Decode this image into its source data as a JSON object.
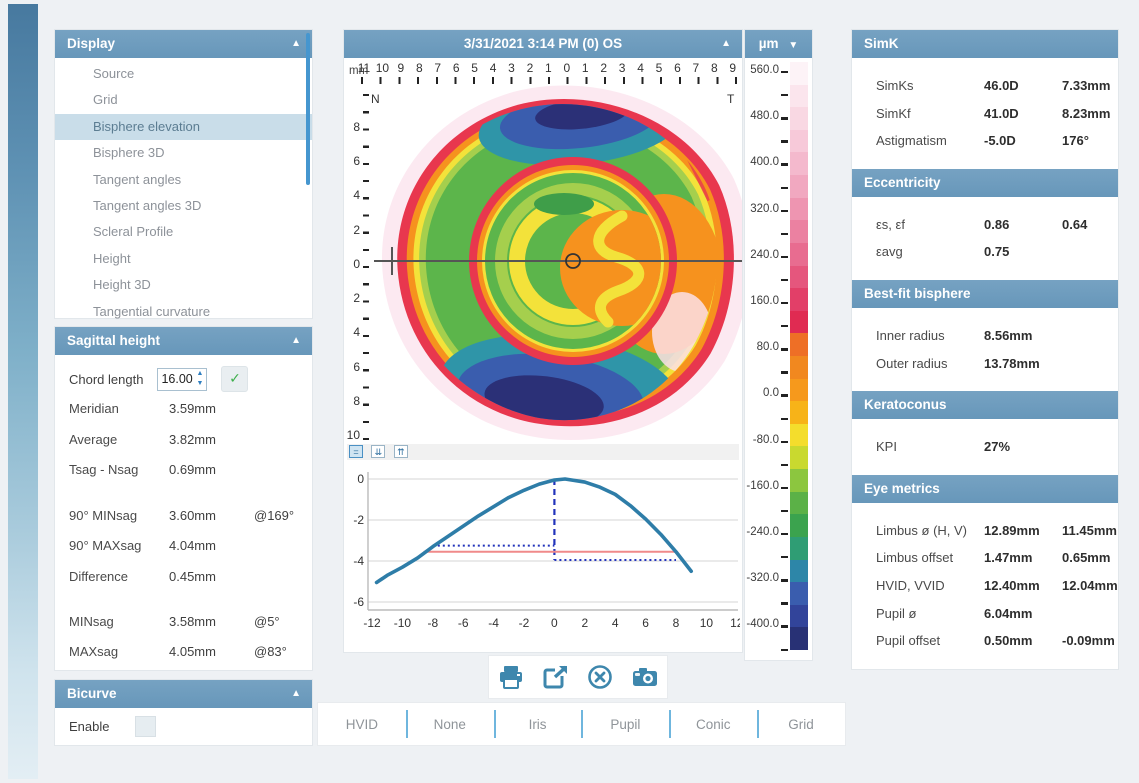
{
  "window": {
    "bg": "#eef1f4",
    "accent": "#6d9cbe",
    "icon_blue": "#3e87ad"
  },
  "display_panel": {
    "title": "Display",
    "collapse_icon": "▲",
    "items": [
      {
        "label": "Source"
      },
      {
        "label": "Grid"
      },
      {
        "label": "Bisphere elevation",
        "selected": true
      },
      {
        "label": "Bisphere 3D"
      },
      {
        "label": "Tangent angles"
      },
      {
        "label": "Tangent angles 3D"
      },
      {
        "label": "Scleral Profile"
      },
      {
        "label": "Height"
      },
      {
        "label": "Height 3D"
      },
      {
        "label": "Tangential curvature"
      }
    ]
  },
  "sagittal_panel": {
    "title": "Sagittal height",
    "collapse_icon": "▲",
    "chord": {
      "label": "Chord length",
      "value": "16.00",
      "ok_icon": "✓",
      "up_icon": "▲",
      "down_icon": "▼"
    },
    "groups": {
      "a": [
        {
          "label": "Meridian",
          "v1": "3.59mm",
          "v2": ""
        },
        {
          "label": "Average",
          "v1": "3.82mm",
          "v2": ""
        },
        {
          "label": "Tsag - Nsag",
          "v1": "0.69mm",
          "v2": ""
        }
      ],
      "b": [
        {
          "label": "90° MINsag",
          "v1": "3.60mm",
          "v2": "@169°"
        },
        {
          "label": "90° MAXsag",
          "v1": "4.04mm",
          "v2": ""
        },
        {
          "label": "Difference",
          "v1": "0.45mm",
          "v2": ""
        }
      ],
      "c": [
        {
          "label": "MINsag",
          "v1": "3.58mm",
          "v2": "@5°"
        },
        {
          "label": "MAXsag",
          "v1": "4.05mm",
          "v2": "@83°"
        }
      ]
    }
  },
  "bicurve_panel": {
    "title": "Bicurve",
    "collapse_icon": "▲",
    "enable_label": "Enable"
  },
  "map_panel": {
    "title": "3/31/2021 3:14 PM (0) OS",
    "collapse_icon": "▲",
    "mm_label": "mm",
    "nasal_label": "N",
    "temporal_label": "T",
    "top_ruler": [
      "11",
      "10",
      "9",
      "8",
      "7",
      "6",
      "5",
      "4",
      "3",
      "2",
      "1",
      "0",
      "1",
      "2",
      "3",
      "4",
      "5",
      "6",
      "7",
      "8",
      "9"
    ],
    "left_ruler": [
      "8",
      "6",
      "4",
      "2",
      "0",
      "2",
      "4",
      "6",
      "8",
      "10"
    ],
    "mini_toolbar": [
      {
        "name": "profile-line-button",
        "glyph": "=",
        "selected": true
      },
      {
        "name": "collapse-profile-button",
        "glyph": "⇊",
        "selected": false
      },
      {
        "name": "expand-profile-button",
        "glyph": "⇈",
        "selected": false
      }
    ]
  },
  "scale_panel": {
    "unit": "µm",
    "dropdown_icon": "▼",
    "tick_labels": [
      "560.0",
      "480.0",
      "400.0",
      "320.0",
      "240.0",
      "160.0",
      "80.0",
      "0.0",
      "-80.0",
      "-160.0",
      "-240.0",
      "-320.0",
      "-400.0"
    ],
    "band_colors": [
      "#fdf3f7",
      "#fbe5ed",
      "#f9d8e3",
      "#f7c9d9",
      "#f4b9cd",
      "#f1a8c0",
      "#ee95b1",
      "#eb81a1",
      "#e86c90",
      "#e5567d",
      "#e23f68",
      "#e02b52",
      "#ee6f26",
      "#f1881f",
      "#f6991c",
      "#f7b318",
      "#f4dd2c",
      "#c9d92f",
      "#8cc63f",
      "#5bb147",
      "#3ba34e",
      "#2f9d74",
      "#2d86a8",
      "#3a5dae",
      "#32449a",
      "#283175"
    ]
  },
  "chart_data": {
    "type": "line",
    "title": "",
    "xlabel": "",
    "ylabel": "",
    "xlim": [
      -12.6,
      12.6
    ],
    "ylim": [
      -7.2,
      0.6
    ],
    "x_ticks": [
      -12,
      -10,
      -8,
      -6,
      -4,
      -2,
      0,
      2,
      4,
      6,
      8,
      10,
      12
    ],
    "y_ticks": [
      0,
      -2,
      -4,
      -6
    ],
    "grid": "horizontal",
    "series": [
      {
        "name": "sagittal-profile",
        "color": "#2e7da8",
        "points": [
          [
            -11.7,
            -5.05
          ],
          [
            -11,
            -4.7
          ],
          [
            -10,
            -4.3
          ],
          [
            -9,
            -3.85
          ],
          [
            -8,
            -3.3
          ],
          [
            -7,
            -2.8
          ],
          [
            -6,
            -2.3
          ],
          [
            -5,
            -1.8
          ],
          [
            -4,
            -1.35
          ],
          [
            -3,
            -0.9
          ],
          [
            -2,
            -0.55
          ],
          [
            -1,
            -0.25
          ],
          [
            0,
            -0.05
          ],
          [
            0.7,
            0.0
          ],
          [
            2,
            -0.15
          ],
          [
            3,
            -0.4
          ],
          [
            4,
            -0.75
          ],
          [
            5,
            -1.3
          ],
          [
            6,
            -1.95
          ],
          [
            7,
            -2.7
          ],
          [
            8,
            -3.55
          ],
          [
            9,
            -4.5
          ]
        ]
      }
    ],
    "markers": {
      "vline": {
        "x": 0,
        "y_from": 0,
        "y_to": -3.95,
        "style": "dashed",
        "color": "#2233bb"
      },
      "hline_left": {
        "y": -3.25,
        "x_from": -8,
        "x_to": 0,
        "style": "dotted",
        "color": "#2233bb"
      },
      "hline_right": {
        "y": -3.95,
        "x_from": 0,
        "x_to": 8,
        "style": "dotted",
        "color": "#2233bb"
      },
      "red_line": {
        "y": -3.55,
        "x_from": -8.6,
        "x_to": 7.9,
        "style": "solid",
        "color": "#f08a8a"
      }
    }
  },
  "action_bar": {
    "buttons": [
      {
        "name": "print-button",
        "icon": "printer-icon"
      },
      {
        "name": "export-button",
        "icon": "export-icon"
      },
      {
        "name": "close-button",
        "icon": "close-circle-icon"
      },
      {
        "name": "snapshot-button",
        "icon": "camera-icon"
      }
    ]
  },
  "overlay_bar": {
    "items": [
      "HVID",
      "None",
      "Iris",
      "Pupil",
      "Conic",
      "Grid"
    ]
  },
  "right_panel": {
    "sections": [
      {
        "title": "SimK",
        "rows": [
          {
            "label": "SimKs",
            "v1": "46.0D",
            "v2": "7.33mm"
          },
          {
            "label": "SimKf",
            "v1": "41.0D",
            "v2": "8.23mm"
          },
          {
            "label": "Astigmatism",
            "v1": "-5.0D",
            "v2": "176°"
          }
        ]
      },
      {
        "title": "Eccentricity",
        "rows": [
          {
            "label": "εs, εf",
            "v1": "0.86",
            "v2": "0.64"
          },
          {
            "label": "εavg",
            "v1": "0.75",
            "v2": ""
          }
        ]
      },
      {
        "title": "Best-fit bisphere",
        "rows": [
          {
            "label": "Inner radius",
            "v1": "8.56mm",
            "v2": ""
          },
          {
            "label": "Outer radius",
            "v1": "13.78mm",
            "v2": ""
          }
        ]
      },
      {
        "title": "Keratoconus",
        "rows": [
          {
            "label": "KPI",
            "v1": "27%",
            "v2": ""
          }
        ]
      },
      {
        "title": "Eye metrics",
        "rows": [
          {
            "label": "Limbus ø (H, V)",
            "v1": "12.89mm",
            "v2": "11.45mm"
          },
          {
            "label": "Limbus offset",
            "v1": "1.47mm",
            "v2": "0.65mm"
          },
          {
            "label": "HVID, VVID",
            "v1": "12.40mm",
            "v2": "12.04mm"
          },
          {
            "label": "Pupil ø",
            "v1": "6.04mm",
            "v2": ""
          },
          {
            "label": "Pupil offset",
            "v1": "0.50mm",
            "v2": "-0.09mm"
          }
        ]
      }
    ]
  }
}
